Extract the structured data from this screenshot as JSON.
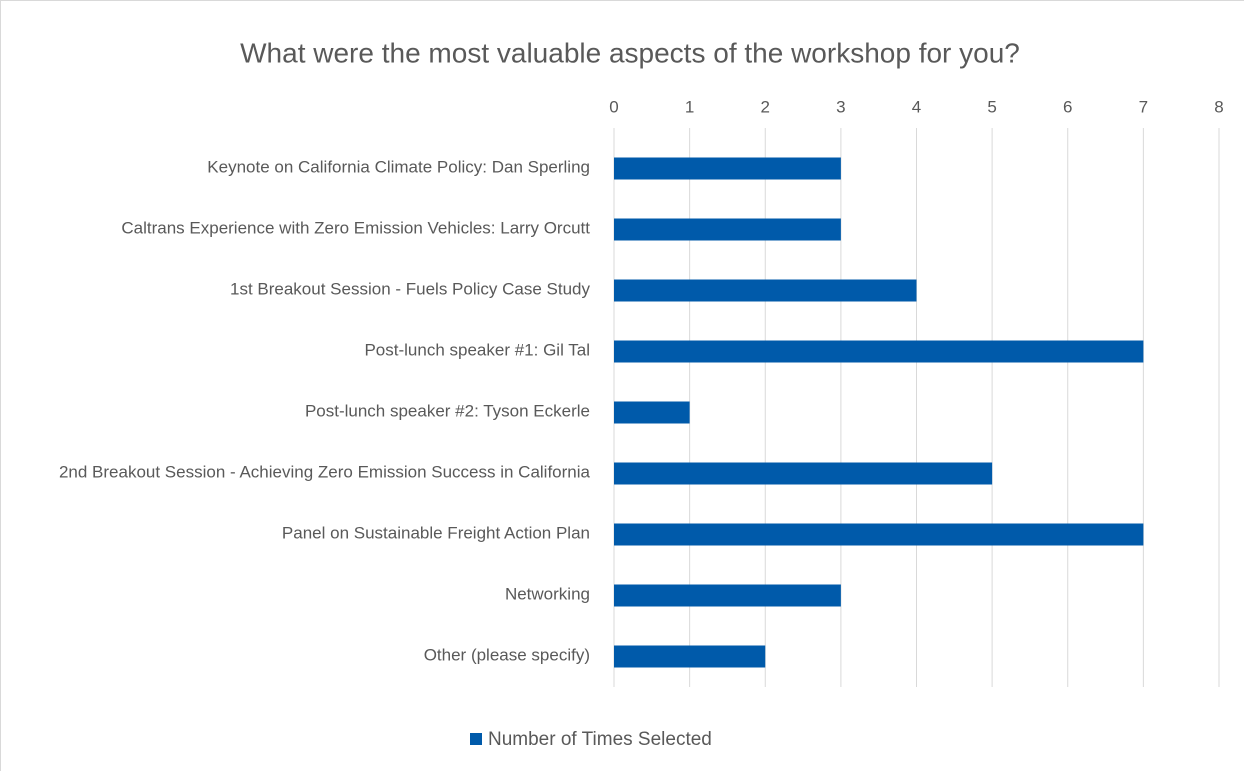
{
  "chart_data": {
    "type": "bar",
    "orientation": "horizontal",
    "title": "What were the most valuable aspects of the workshop for you?",
    "categories": [
      "Keynote on California Climate Policy: Dan Sperling",
      "Caltrans Experience with Zero Emission Vehicles: Larry Orcutt",
      "1st Breakout Session - Fuels Policy Case Study",
      "Post-lunch speaker #1: Gil Tal",
      "Post-lunch speaker #2: Tyson Eckerle",
      "2nd Breakout Session - Achieving Zero Emission Success in California",
      "Panel on Sustainable Freight Action Plan",
      "Networking",
      "Other (please specify)"
    ],
    "series": [
      {
        "name": "Number of Times Selected",
        "color": "#005aaa",
        "values": [
          3,
          3,
          4,
          7,
          1,
          5,
          7,
          3,
          2
        ]
      }
    ],
    "xlim": [
      0,
      8
    ],
    "xticks": [
      0,
      1,
      2,
      3,
      4,
      5,
      6,
      7,
      8
    ],
    "grid": true,
    "legend": "bottom"
  }
}
